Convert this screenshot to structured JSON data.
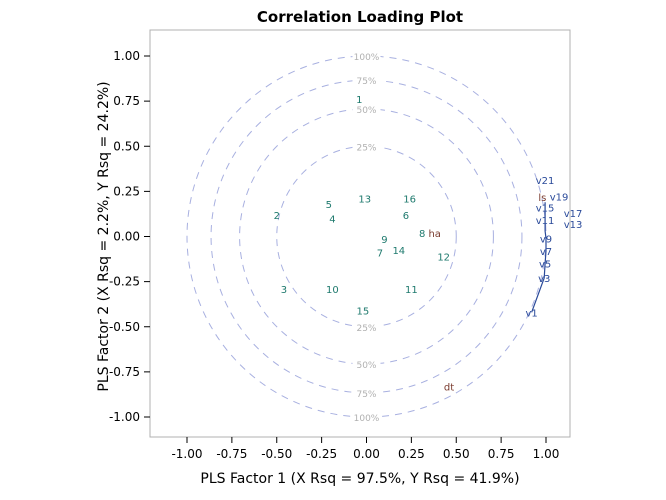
{
  "chart_data": {
    "type": "scatter",
    "title": "Correlation Loading Plot",
    "xlabel": "PLS Factor 1 (X Rsq = 97.5%, Y Rsq = 41.9%)",
    "ylabel": "PLS Factor 2 (X Rsq = 2.2%, Y Rsq = 24.2%)",
    "xlim": [
      -1.1,
      1.13
    ],
    "ylim": [
      -1.1,
      1.1
    ],
    "xticks": [
      "-1.00",
      "-0.75",
      "-0.50",
      "-0.25",
      "0.00",
      "0.25",
      "0.50",
      "0.75",
      "1.00"
    ],
    "yticks": [
      "1.00",
      "0.75",
      "0.50",
      "0.25",
      "0.00",
      "-0.25",
      "-0.50",
      "-0.75",
      "-1.00"
    ],
    "grid": false,
    "circles": [
      {
        "label": "100%",
        "radius": 1.0
      },
      {
        "label": "75%",
        "radius": 0.866
      },
      {
        "label": "50%",
        "radius": 0.707
      },
      {
        "label": "25%",
        "radius": 0.5
      }
    ],
    "colors": {
      "observation": "#1f7a6e",
      "response": "#7a3b2e",
      "predictor": "#2a4a9a",
      "circle": "#a8b0e0",
      "circle_label": "#b0b0b0"
    },
    "observations": [
      {
        "label": "1",
        "x": -0.04,
        "y": 0.7
      },
      {
        "label": "2",
        "x": -0.5,
        "y": 0.12
      },
      {
        "label": "3",
        "x": -0.46,
        "y": -0.29
      },
      {
        "label": "4",
        "x": -0.19,
        "y": 0.1
      },
      {
        "label": "5",
        "x": -0.21,
        "y": 0.12
      },
      {
        "label": "6",
        "x": 0.22,
        "y": 0.12
      },
      {
        "label": "7",
        "x": 0.075,
        "y": -0.09
      },
      {
        "label": "8",
        "x": 0.31,
        "y": 0.02
      },
      {
        "label": "9",
        "x": 0.1,
        "y": -0.075
      },
      {
        "label": "10",
        "x": -0.19,
        "y": -0.29
      },
      {
        "label": "11",
        "x": 0.25,
        "y": -0.29
      },
      {
        "label": "12",
        "x": 0.43,
        "y": -0.11
      },
      {
        "label": "13",
        "x": -0.01,
        "y": 0.21
      },
      {
        "label": "14",
        "x": 0.18,
        "y": -0.075
      },
      {
        "label": "15",
        "x": -0.02,
        "y": -0.41
      },
      {
        "label": "16",
        "x": 0.24,
        "y": 0.21
      }
    ],
    "responses": [
      {
        "label": "ha",
        "x": 0.38,
        "y": 0.02
      },
      {
        "label": "dt",
        "x": 0.46,
        "y": -0.83
      },
      {
        "label": "ls",
        "x": 0.98,
        "y": 0.22
      }
    ],
    "predictors": [
      {
        "label": "v1",
        "x": 0.92,
        "y": -0.42
      },
      {
        "label": "v3",
        "x": 0.99,
        "y": -0.23
      },
      {
        "label": "v5",
        "x": 0.995,
        "y": -0.15
      },
      {
        "label": "v7",
        "x": 1.0,
        "y": -0.08
      },
      {
        "label": "v9",
        "x": 1.0,
        "y": -0.01
      },
      {
        "label": "v11",
        "x": 0.995,
        "y": 0.03
      },
      {
        "label": "v13",
        "x": 0.995,
        "y": 0.07
      },
      {
        "label": "v15",
        "x": 0.995,
        "y": 0.1
      },
      {
        "label": "v17",
        "x": 0.995,
        "y": 0.13
      },
      {
        "label": "v19",
        "x": 0.995,
        "y": 0.16
      },
      {
        "label": "v21",
        "x": 0.995,
        "y": 0.19
      }
    ]
  }
}
